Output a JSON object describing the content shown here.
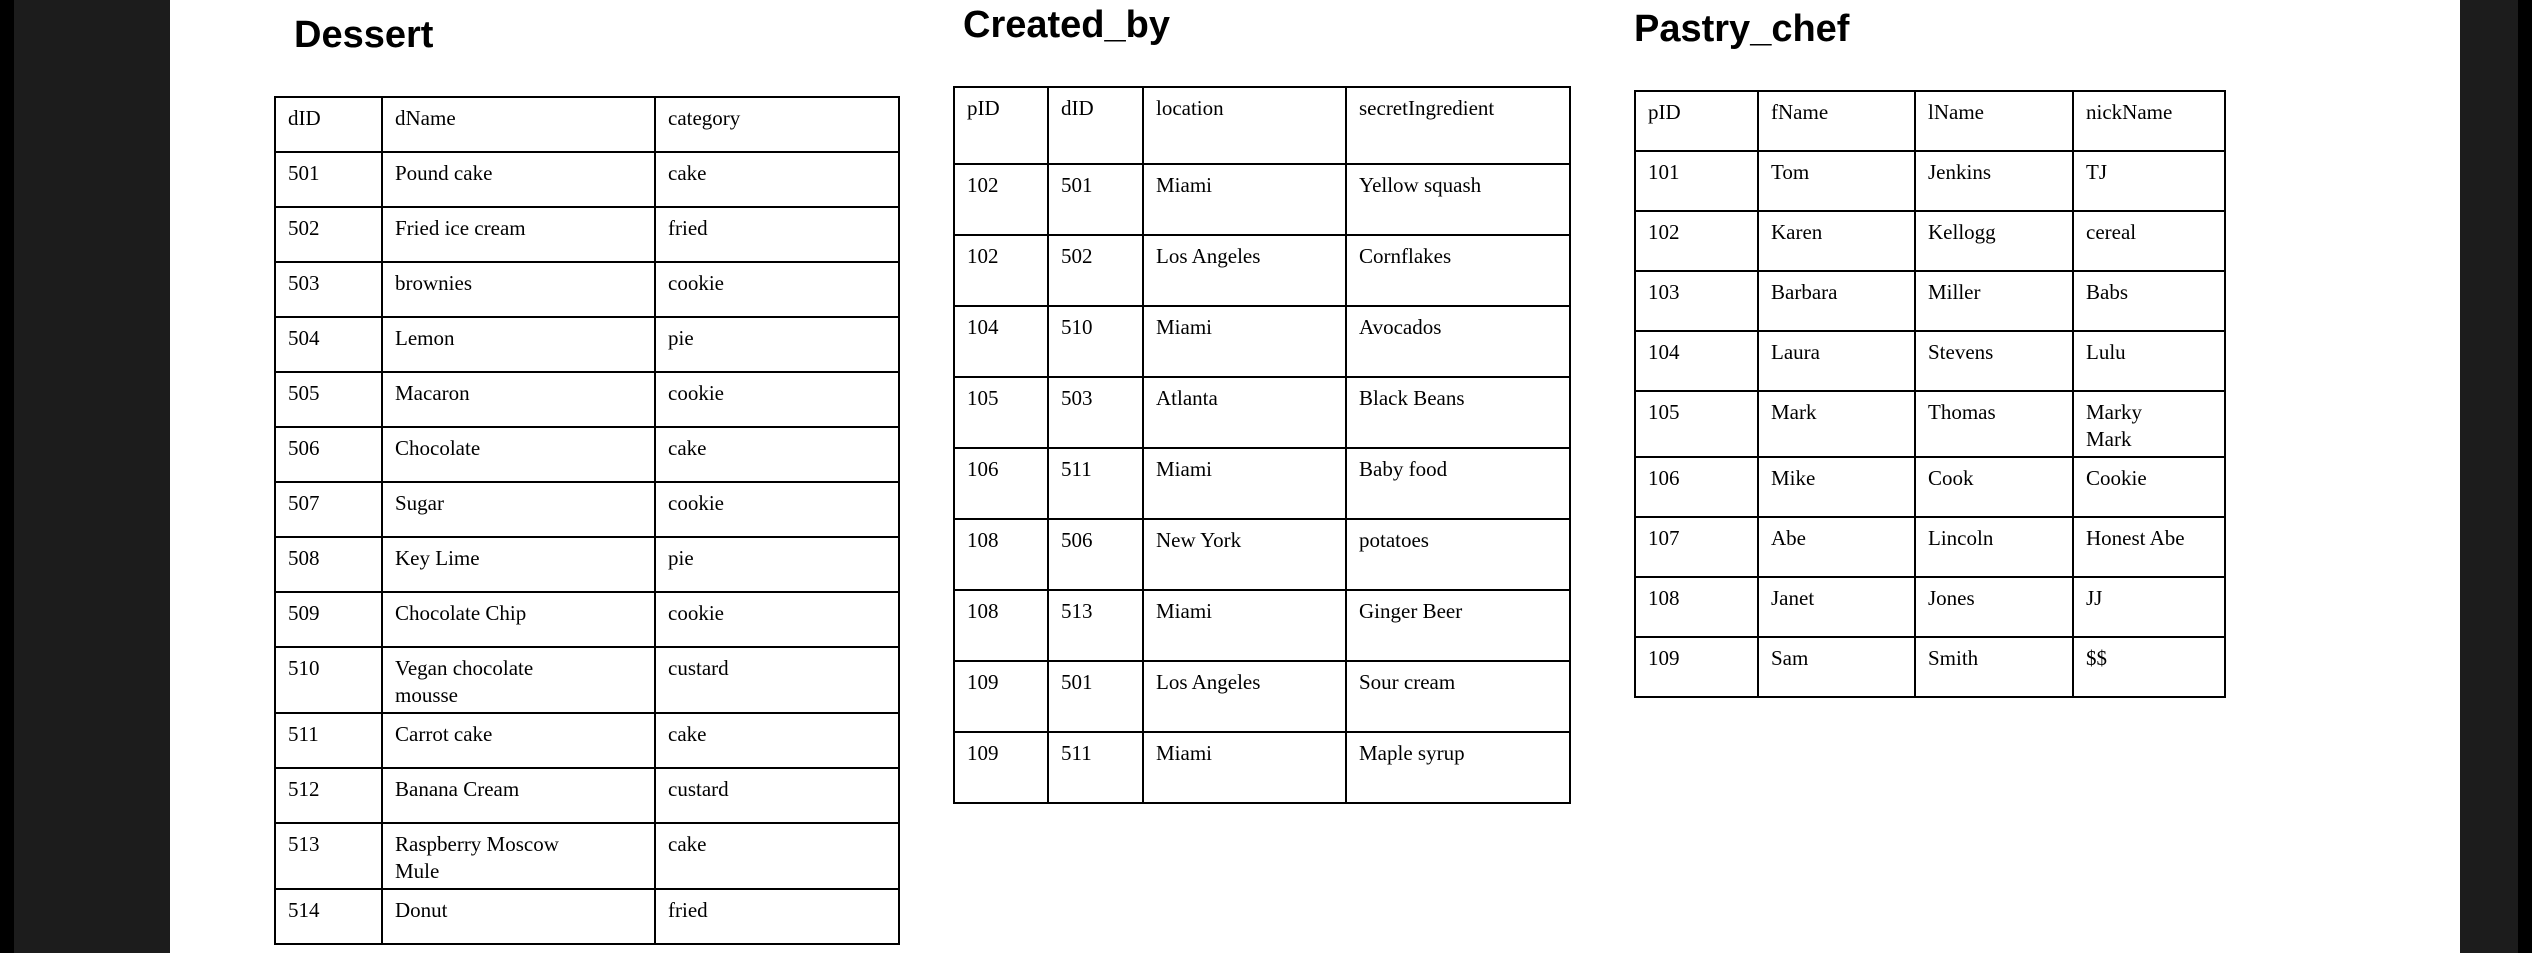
{
  "page": {
    "background_color": "#ffffff",
    "side_panel_color": "#1c1c1c",
    "border_color": "#000000"
  },
  "tables": [
    {
      "title": "Dessert",
      "headers": [
        "dID",
        "dName",
        "category"
      ],
      "rows": [
        [
          "501",
          "Pound cake",
          "cake"
        ],
        [
          "502",
          "Fried ice cream",
          "fried"
        ],
        [
          "503",
          "brownies",
          "cookie"
        ],
        [
          "504",
          "Lemon",
          "pie"
        ],
        [
          "505",
          "Macaron",
          "cookie"
        ],
        [
          "506",
          "Chocolate",
          "cake"
        ],
        [
          "507",
          "Sugar",
          "cookie"
        ],
        [
          "508",
          "Key Lime",
          "pie"
        ],
        [
          "509",
          "Chocolate Chip",
          "cookie"
        ],
        [
          "510",
          "Vegan chocolate\nmousse",
          "custard"
        ],
        [
          "511",
          "Carrot cake",
          "cake"
        ],
        [
          "512",
          "Banana Cream",
          "custard"
        ],
        [
          "513",
          "Raspberry Moscow\nMule",
          "cake"
        ],
        [
          "514",
          "Donut",
          "fried"
        ]
      ]
    },
    {
      "title": "Created_by",
      "headers": [
        "pID",
        "dID",
        "location",
        "secretIngredient"
      ],
      "rows": [
        [
          "102",
          "501",
          "Miami",
          "Yellow squash"
        ],
        [
          "102",
          "502",
          "Los Angeles",
          "Cornflakes"
        ],
        [
          "104",
          "510",
          "Miami",
          "Avocados"
        ],
        [
          "105",
          "503",
          "Atlanta",
          "Black Beans"
        ],
        [
          "106",
          "511",
          "Miami",
          "Baby food"
        ],
        [
          "108",
          "506",
          "New York",
          "potatoes"
        ],
        [
          "108",
          "513",
          "Miami",
          "Ginger Beer"
        ],
        [
          "109",
          "501",
          "Los Angeles",
          "Sour cream"
        ],
        [
          "109",
          "511",
          "Miami",
          "Maple syrup"
        ]
      ]
    },
    {
      "title": "Pastry_chef",
      "headers": [
        "pID",
        "fName",
        "lName",
        "nickName"
      ],
      "rows": [
        [
          "101",
          "Tom",
          "Jenkins",
          "TJ"
        ],
        [
          "102",
          "Karen",
          "Kellogg",
          "cereal"
        ],
        [
          "103",
          "Barbara",
          "Miller",
          "Babs"
        ],
        [
          "104",
          "Laura",
          "Stevens",
          "Lulu"
        ],
        [
          "105",
          "Mark",
          "Thomas",
          "Marky\nMark"
        ],
        [
          "106",
          "Mike",
          "Cook",
          "Cookie"
        ],
        [
          "107",
          "Abe",
          "Lincoln",
          "Honest Abe"
        ],
        [
          "108",
          "Janet",
          "Jones",
          "JJ"
        ],
        [
          "109",
          "Sam",
          "Smith",
          "$$"
        ]
      ]
    }
  ]
}
